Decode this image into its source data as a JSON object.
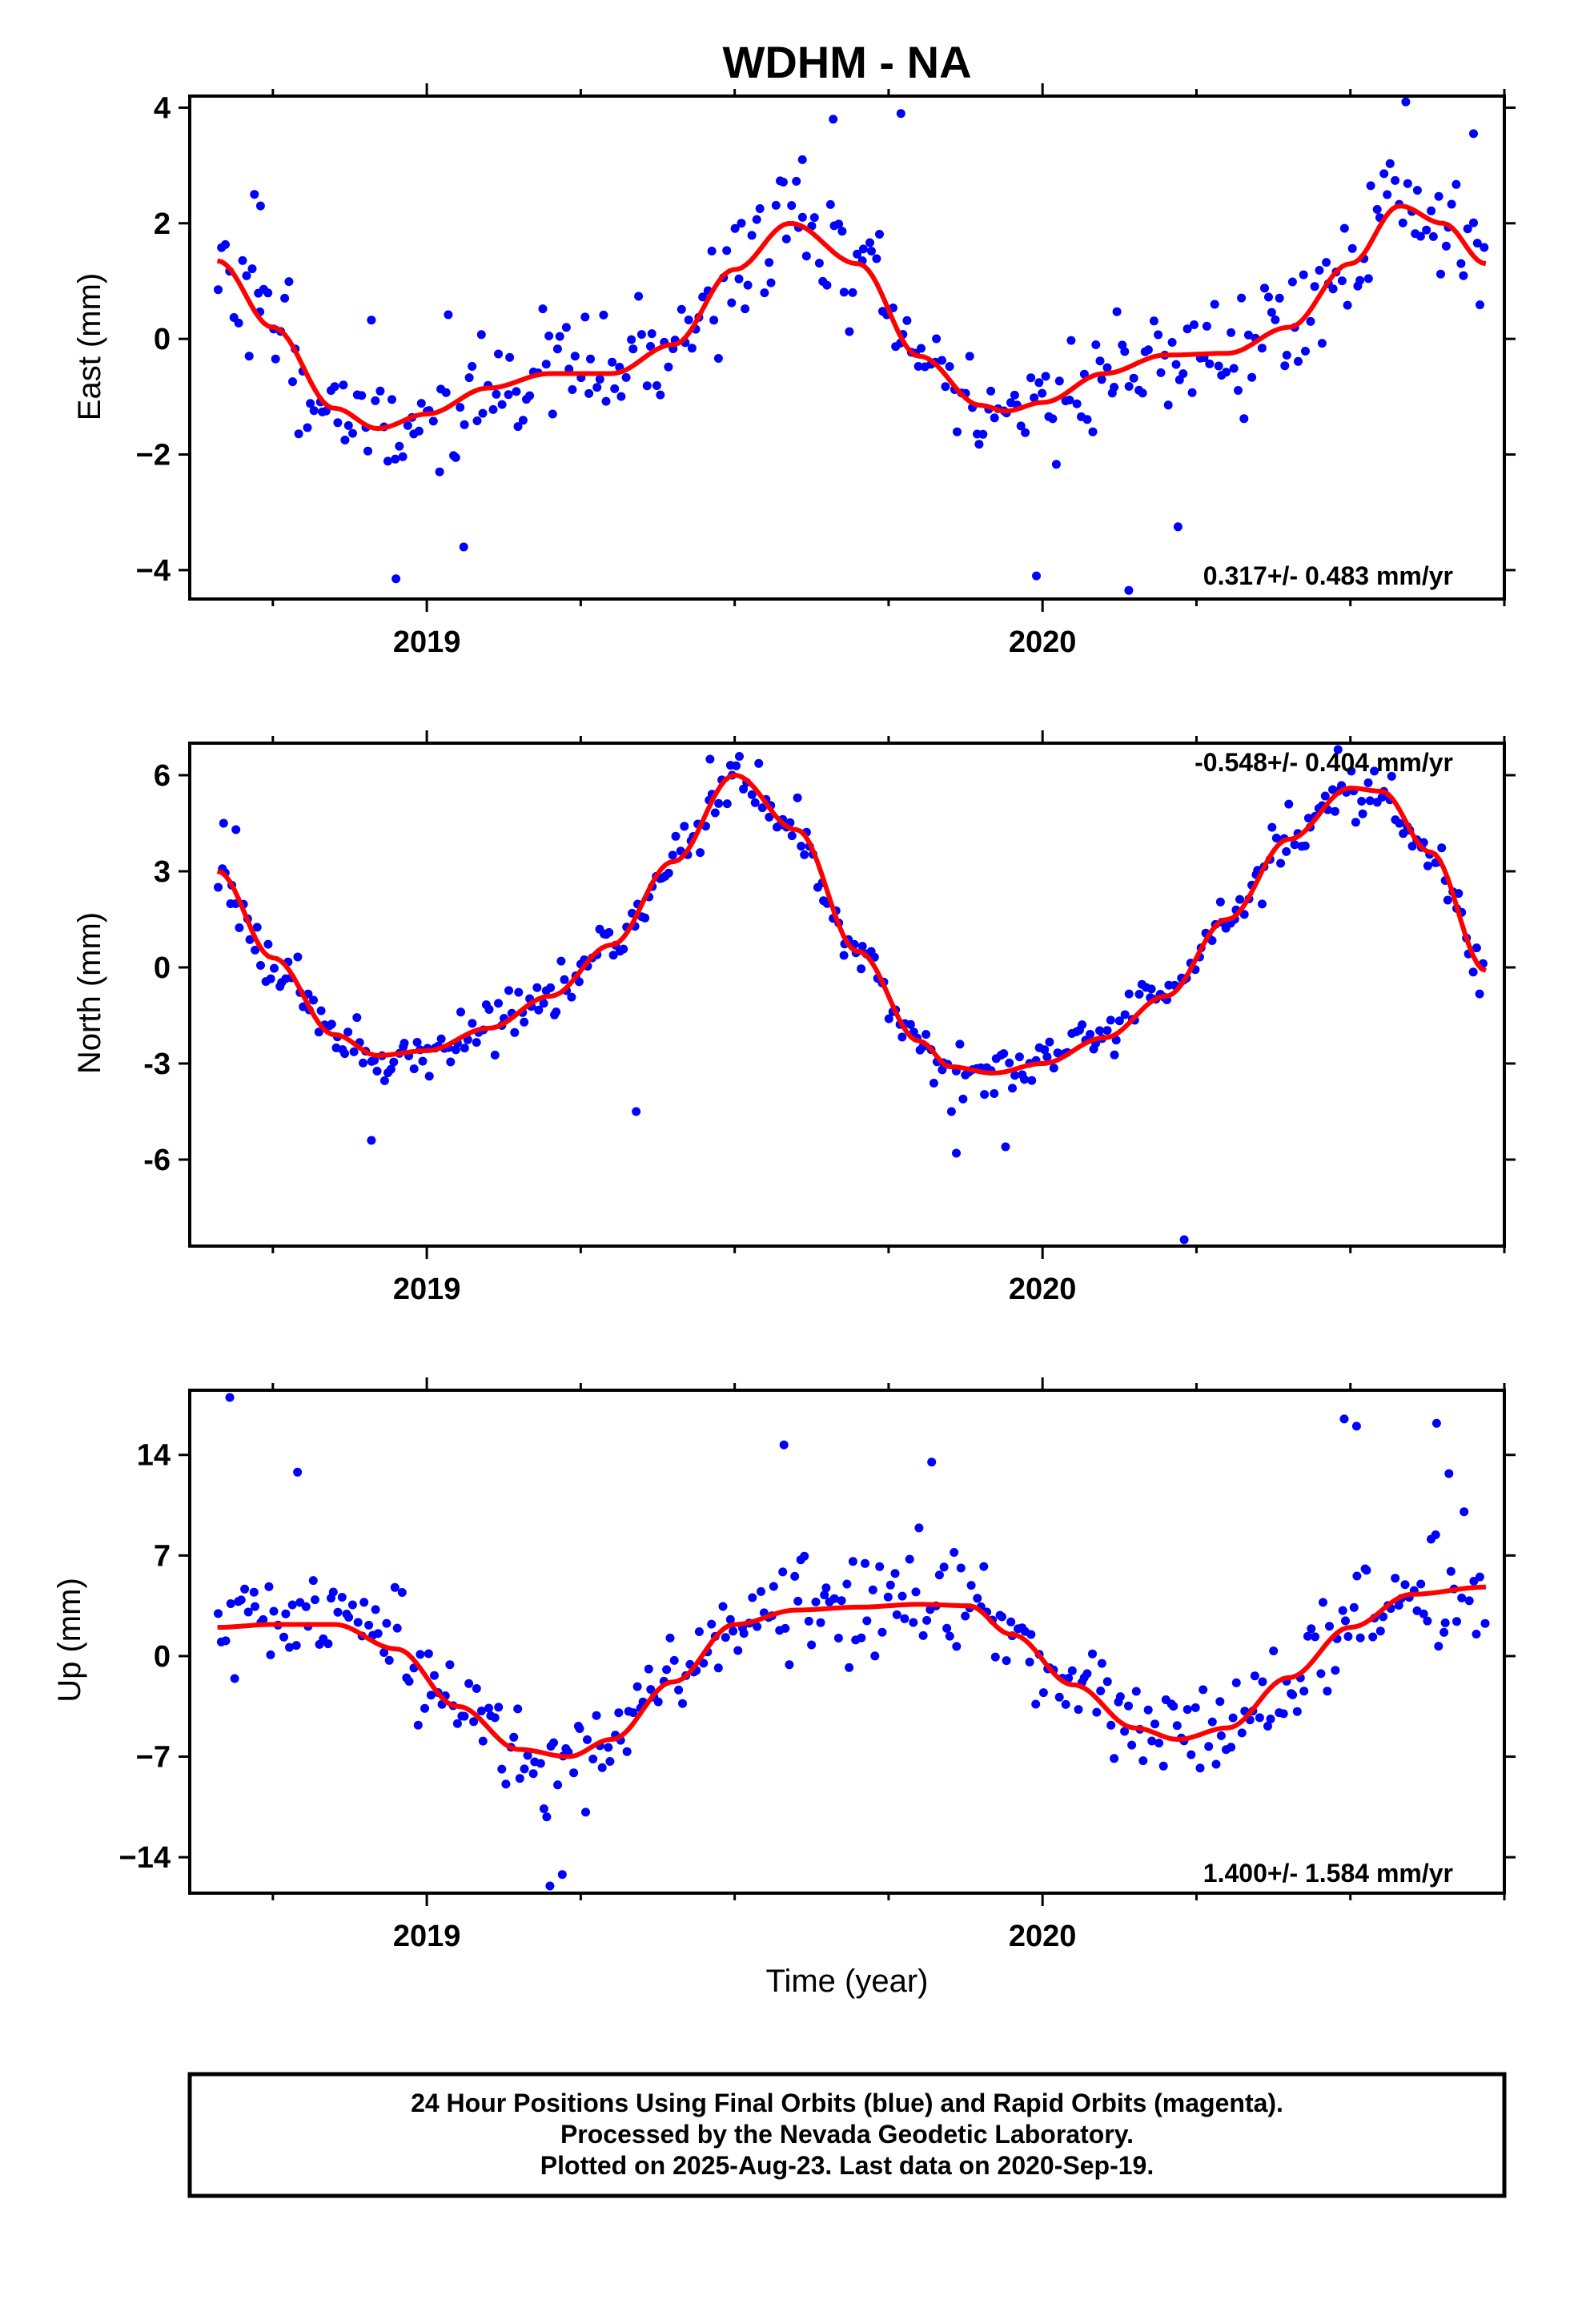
{
  "title": "WDHM - NA",
  "caption": [
    "24 Hour Positions Using Final Orbits (blue) and Rapid Orbits (magenta).",
    "Processed by the Nevada Geodetic Laboratory.",
    "Plotted on 2025-Aug-23. Last data on 2020-Sep-19."
  ],
  "colors": {
    "points": "#0000ff",
    "fit": "#ff0000",
    "frame": "#000000"
  },
  "chart_data": [
    {
      "type": "scatter",
      "component": "East",
      "ylabel": "East (mm)",
      "xlabel": "",
      "xlim": [
        2018.615,
        2020.75
      ],
      "ylim": [
        -4.5,
        4.2
      ],
      "xticks": [
        2019,
        2020
      ],
      "yticks": [
        -4,
        -2,
        0,
        2,
        4
      ],
      "ytick_labels": [
        "−4",
        "−2",
        "0",
        "2",
        "4"
      ],
      "rate_label": "0.317+/- 0.483 mm/yr",
      "rate_position": "bottom-right",
      "fit": {
        "x": [
          2018.66,
          2018.75,
          2018.85,
          2018.92,
          2019.0,
          2019.1,
          2019.2,
          2019.3,
          2019.4,
          2019.5,
          2019.59,
          2019.7,
          2019.8,
          2019.9,
          2019.94,
          2020.0,
          2020.1,
          2020.2,
          2020.3,
          2020.4,
          2020.5,
          2020.58,
          2020.65,
          2020.72
        ],
        "y": [
          1.35,
          0.2,
          -1.2,
          -1.55,
          -1.3,
          -0.85,
          -0.6,
          -0.6,
          -0.1,
          1.2,
          2.0,
          1.3,
          -0.3,
          -1.15,
          -1.25,
          -1.1,
          -0.6,
          -0.28,
          -0.25,
          0.2,
          1.3,
          2.3,
          2.0,
          1.3
        ]
      },
      "noise": 0.95,
      "n_points": 330,
      "seed": 11,
      "extra_points": {
        "x": [
          2018.72,
          2018.73,
          2019.61,
          2019.66,
          2019.77,
          2019.99,
          2020.14,
          2020.59,
          2020.7,
          2019.06,
          2018.95,
          2020.22
        ],
        "y": [
          2.5,
          2.3,
          3.1,
          3.8,
          3.9,
          -4.1,
          -4.35,
          4.1,
          3.55,
          -3.6,
          -4.15,
          -3.25
        ]
      }
    },
    {
      "type": "scatter",
      "component": "North",
      "ylabel": "North (mm)",
      "xlabel": "",
      "xlim": [
        2018.615,
        2020.75
      ],
      "ylim": [
        -8.7,
        7.0
      ],
      "xticks": [
        2019,
        2020
      ],
      "yticks": [
        -6,
        -3,
        0,
        3,
        6
      ],
      "ytick_labels": [
        "-6",
        "-3",
        "0",
        "3",
        "6"
      ],
      "rate_label": "-0.548+/- 0.404 mm/yr",
      "rate_position": "top-right",
      "fit": {
        "x": [
          2018.66,
          2018.75,
          2018.85,
          2018.92,
          2019.0,
          2019.1,
          2019.2,
          2019.3,
          2019.4,
          2019.5,
          2019.6,
          2019.7,
          2019.8,
          2019.85,
          2019.92,
          2020.0,
          2020.1,
          2020.2,
          2020.3,
          2020.4,
          2020.5,
          2020.55,
          2020.63,
          2020.72
        ],
        "y": [
          3.0,
          0.3,
          -2.1,
          -2.75,
          -2.6,
          -1.9,
          -0.9,
          0.7,
          3.3,
          6.0,
          4.3,
          0.5,
          -2.3,
          -3.1,
          -3.3,
          -3.0,
          -2.2,
          -0.9,
          1.5,
          4.0,
          5.6,
          5.5,
          3.6,
          -0.1
        ]
      },
      "noise": 0.7,
      "n_points": 360,
      "seed": 23,
      "extra_points": {
        "x": [
          2018.67,
          2018.69,
          2019.34,
          2019.46,
          2020.23,
          2019.86,
          2019.94,
          2018.91,
          2020.48
        ],
        "y": [
          4.5,
          4.3,
          -4.5,
          6.5,
          -8.5,
          -5.8,
          -5.6,
          -5.4,
          6.8
        ]
      }
    },
    {
      "type": "scatter",
      "component": "Up",
      "ylabel": "Up (mm)",
      "xlabel": "Time (year)",
      "xlim": [
        2018.615,
        2020.75
      ],
      "ylim": [
        -16.5,
        18.5
      ],
      "xticks": [
        2019,
        2020
      ],
      "yticks": [
        -14,
        -7,
        0,
        7,
        14
      ],
      "ytick_labels": [
        "−14",
        "−7",
        "0",
        "7",
        "14"
      ],
      "rate_label": "1.400+/- 1.584 mm/yr",
      "rate_position": "bottom-right",
      "fit": {
        "x": [
          2018.66,
          2018.75,
          2018.85,
          2018.95,
          2019.05,
          2019.15,
          2019.23,
          2019.3,
          2019.4,
          2019.5,
          2019.6,
          2019.7,
          2019.8,
          2019.88,
          2019.95,
          2020.05,
          2020.15,
          2020.22,
          2020.3,
          2020.4,
          2020.5,
          2020.6,
          2020.72
        ],
        "y": [
          2.0,
          2.2,
          2.2,
          0.5,
          -3.5,
          -6.5,
          -7.0,
          -5.8,
          -1.8,
          2.2,
          3.2,
          3.4,
          3.6,
          3.5,
          1.5,
          -2.0,
          -5.0,
          -5.8,
          -5.0,
          -1.5,
          2.0,
          4.3,
          4.8
        ]
      },
      "noise": 3.2,
      "n_points": 340,
      "seed": 37,
      "extra_points": {
        "x": [
          2018.68,
          2018.79,
          2019.2,
          2019.22,
          2020.49,
          2020.51,
          2020.64,
          2020.66,
          2019.58,
          2019.82
        ],
        "y": [
          18.0,
          12.8,
          -16.0,
          -15.2,
          16.5,
          16.0,
          16.2,
          12.7,
          14.7,
          13.5
        ]
      }
    }
  ]
}
